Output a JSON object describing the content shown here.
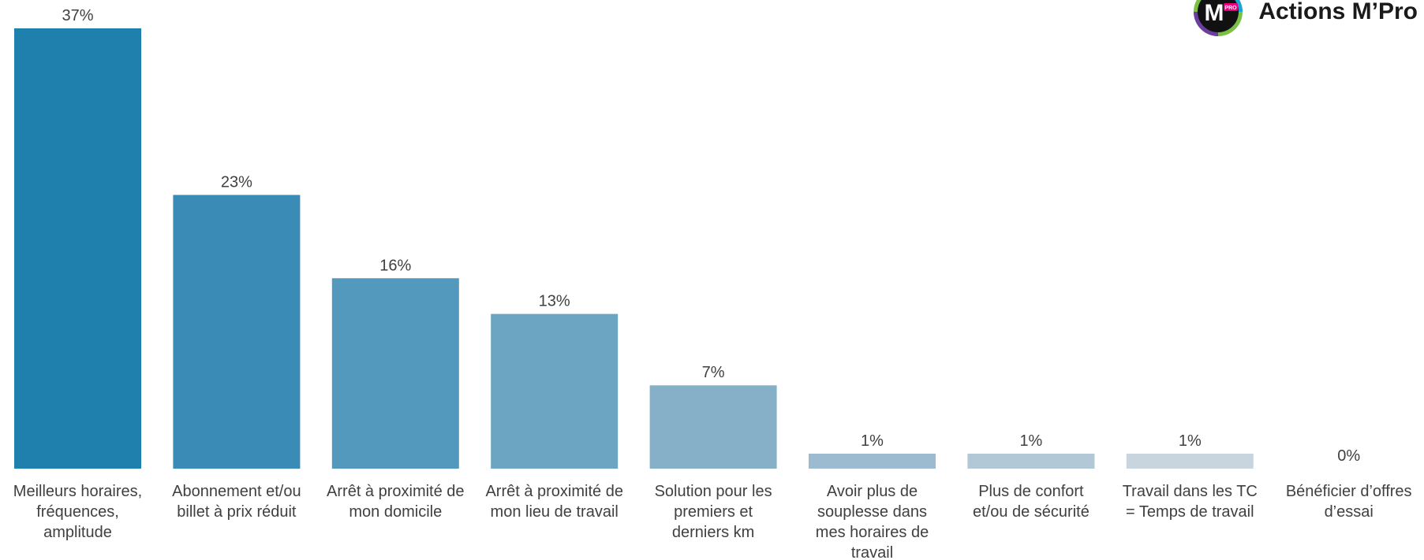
{
  "brand": {
    "name": "Actions M’Pro",
    "logo_letter": "M",
    "logo_badge": "PRO"
  },
  "chart_data": {
    "type": "bar",
    "categories": [
      [
        "Meilleurs horaires,",
        "fréquences,",
        "amplitude"
      ],
      [
        "Abonnement et/ou",
        "billet à prix réduit"
      ],
      [
        "Arrêt à proximité de",
        "mon domicile"
      ],
      [
        "Arrêt à proximité de",
        "mon lieu de travail"
      ],
      [
        "Solution pour les",
        "premiers et",
        "derniers km"
      ],
      [
        "Avoir plus de",
        "souplesse dans",
        "mes horaires de",
        "travail"
      ],
      [
        "Plus de confort",
        "et/ou de sécurité"
      ],
      [
        "Travail dans les TC",
        "= Temps de travail"
      ],
      [
        "Bénéficier d’offres",
        "d’essai"
      ]
    ],
    "values": [
      37,
      23,
      16,
      13,
      7,
      1,
      1,
      1,
      0
    ],
    "data_labels": [
      "37%",
      "23%",
      "16%",
      "13%",
      "7%",
      "1%",
      "1%",
      "1%",
      "0%"
    ],
    "bar_colors": [
      "#1f7fad",
      "#3a8bb6",
      "#5299bd",
      "#6ba5c2",
      "#86b0c8",
      "#9cbad0",
      "#b2c8d6",
      "#c9d5de",
      "#dde4ea"
    ],
    "ylim": [
      0,
      37
    ],
    "grid": false,
    "legend": "none"
  }
}
